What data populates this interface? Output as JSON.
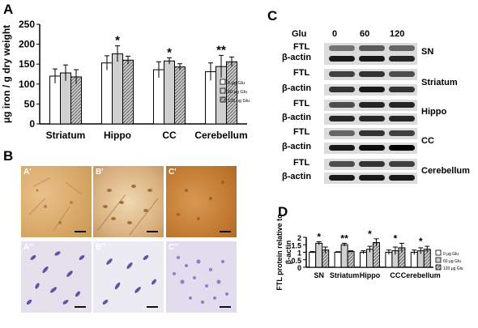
{
  "panels": {
    "a": "A",
    "b": "B",
    "c": "C",
    "d": "D"
  },
  "chart_data": [
    {
      "type": "bar",
      "panel": "A",
      "ylabel": "μg iron / g dry weight",
      "ylim": [
        0,
        250
      ],
      "yticks": [
        0,
        50,
        100,
        150,
        200,
        250
      ],
      "categories": [
        "Striatum",
        "Hippo",
        "CC",
        "Cerebellum"
      ],
      "series": [
        {
          "name": "0 μg Glu",
          "values": [
            120,
            153,
            136,
            131
          ],
          "errors": [
            18,
            18,
            20,
            22
          ],
          "fill": "#ffffff"
        },
        {
          "name": "60 μg Glu",
          "values": [
            128,
            176,
            158,
            144
          ],
          "errors": [
            20,
            20,
            8,
            28
          ],
          "fill": "#d0d0d0"
        },
        {
          "name": "120 μg Glu",
          "values": [
            118,
            160,
            143,
            156
          ],
          "errors": [
            18,
            10,
            8,
            12
          ],
          "fill": "#a8a8a8"
        }
      ],
      "annotations": [
        "",
        "*",
        "*",
        "**"
      ],
      "legend_position": "right",
      "grid": false
    },
    {
      "type": "bar",
      "panel": "D",
      "ylabel": "FTL protein relative to β-actin",
      "ylim": [
        0,
        2
      ],
      "yticks": [
        0,
        0.5,
        1,
        1.5,
        2
      ],
      "ytick_labels": [
        "0",
        "0.5",
        "1",
        "1.5",
        "2"
      ],
      "categories": [
        "SN",
        "Striatum",
        "Hippo",
        "CC",
        "Cerebellum"
      ],
      "series": [
        {
          "name": "0 μg Glu",
          "values": [
            1.0,
            1.0,
            1.0,
            1.0,
            1.0
          ],
          "errors": [
            0.05,
            0.04,
            0.1,
            0.15,
            0.15
          ],
          "fill": "#ffffff"
        },
        {
          "name": "60 μg Glu",
          "values": [
            1.6,
            1.5,
            1.2,
            1.1,
            1.1
          ],
          "errors": [
            0.1,
            0.1,
            0.2,
            0.25,
            0.2
          ],
          "fill": "#d0d0d0"
        },
        {
          "name": "120 μg Glu",
          "values": [
            1.15,
            1.05,
            1.65,
            1.3,
            1.2
          ],
          "errors": [
            0.2,
            0.05,
            0.25,
            0.3,
            0.2
          ],
          "fill": "#a8a8a8"
        }
      ],
      "annotations": [
        "*",
        "**",
        "*",
        "*",
        "*"
      ],
      "legend_position": "right",
      "grid": false
    }
  ],
  "micrographs": {
    "top": [
      "A'",
      "B'",
      "C'"
    ],
    "bottom": [
      "A''",
      "B''",
      "C''"
    ]
  },
  "western": {
    "header": "Glu",
    "doses": [
      "0",
      "60",
      "120"
    ],
    "rows": [
      {
        "protein": "FTL",
        "region": ""
      },
      {
        "protein": "β-actin",
        "region": "SN"
      },
      {
        "protein": "FTL",
        "region": ""
      },
      {
        "protein": "β-actin",
        "region": "Striatum"
      },
      {
        "protein": "FTL",
        "region": ""
      },
      {
        "protein": "β-actin",
        "region": "Hippo"
      },
      {
        "protein": "FTL",
        "region": ""
      },
      {
        "protein": "β-actin",
        "region": "CC"
      },
      {
        "protein": "FTL",
        "region": ""
      },
      {
        "protein": "β-actin",
        "region": "Cerebellum"
      }
    ]
  },
  "colors": {
    "text": "#000000",
    "stain_brown": "#c8884a",
    "stain_violet": "#5a4aa8"
  }
}
